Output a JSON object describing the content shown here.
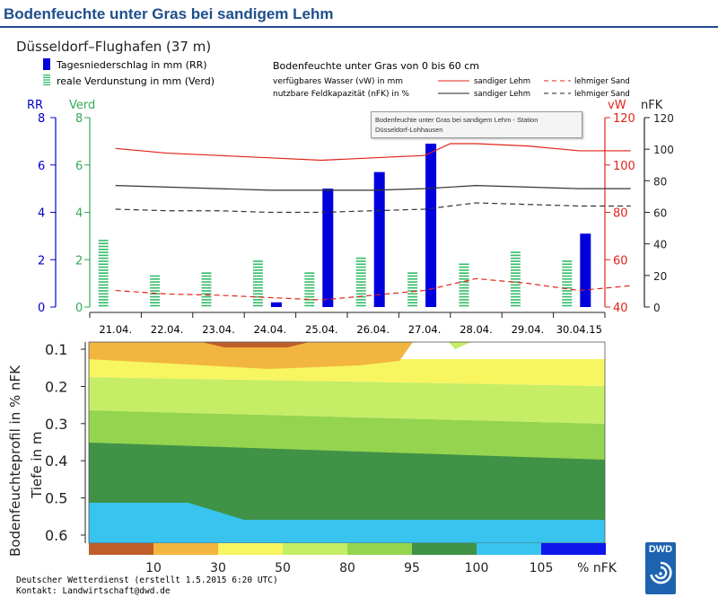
{
  "page": {
    "title": "Bodenfeuchte unter Gras bei sandigem Lehm"
  },
  "tooltip": {
    "line1": "Bodenfeuchte unter Gras bei sandigem Lehm - Station",
    "line2": "Düsseldorf-Lohhausen"
  },
  "colors": {
    "precip": "#0000dd",
    "evap": "#33bb66",
    "red": "#e2231a",
    "black": "#333333",
    "axis_rr": "#0000cc",
    "axis_verd": "#33aa55"
  },
  "chart_data": [
    {
      "type": "bar+line",
      "station": "Düsseldorf–Flughafen (37 m)",
      "legend": {
        "precip": "Tagesniederschlag in mm (RR)",
        "evap": "reale Verdunstung in mm (Verd)",
        "soil_title": "Bodenfeuchte unter Gras von 0 bis 60 cm",
        "vw_label": "verfügbares Wasser (vW) in mm",
        "nfk_label": "nutzbare Feldkapazität (nFK) in %",
        "sandy_loam": "sandiger Lehm",
        "loamy_sand": "lehmiger Sand"
      },
      "axis_labels": {
        "rr": "RR",
        "verd": "Verd",
        "vw": "vW",
        "nfk": "nFK"
      },
      "categories": [
        "21.04.",
        "22.04.",
        "23.04.",
        "24.04.",
        "25.04.",
        "26.04.",
        "27.04.",
        "28.04.",
        "29.04.",
        "30.04.15"
      ],
      "rr_ticks": [
        "0",
        "2",
        "4",
        "6",
        "8"
      ],
      "verd_ticks": [
        "0",
        "2",
        "4",
        "6",
        "8"
      ],
      "vw_ticks": [
        "40",
        "60",
        "80",
        "100",
        "120"
      ],
      "nfk_ticks": [
        "0",
        "20",
        "40",
        "60",
        "80",
        "100",
        "120"
      ],
      "rr_range": [
        0,
        8
      ],
      "vw_range": [
        40,
        120
      ],
      "nfk_range": [
        0,
        120
      ],
      "precip_mm": [
        0,
        0,
        0,
        0.2,
        5.0,
        5.7,
        6.9,
        0,
        0,
        3.1
      ],
      "evap_mm": [
        2.9,
        1.3,
        1.5,
        2.0,
        1.5,
        2.1,
        1.5,
        1.9,
        2.4,
        2.0
      ],
      "vw_sandy_loam_x": [
        0,
        1,
        2,
        3,
        4,
        5,
        6,
        6.5,
        7,
        8,
        9,
        10
      ],
      "vw_sandy_loam": [
        107,
        105,
        104,
        103,
        102,
        103,
        104,
        109,
        109,
        108,
        106,
        106
      ],
      "vw_loamy_sand_x": [
        0,
        1,
        2,
        3,
        4,
        5,
        6,
        7,
        8,
        9,
        10
      ],
      "vw_loamy_sand": [
        47,
        45.5,
        45,
        44,
        43,
        45,
        47,
        52,
        50,
        47,
        49
      ],
      "nfk_sandy_loam": [
        77,
        76,
        75,
        74,
        74,
        74,
        75,
        77,
        76,
        75,
        75
      ],
      "nfk_loamy_sand": [
        62,
        61,
        61,
        60,
        60,
        61,
        62,
        66,
        65,
        64,
        64
      ]
    },
    {
      "type": "heatmap",
      "ylabel": "Bodenfeuchteprofil in % nFK",
      "ylabel2": "Tiefe in m",
      "depth_ticks": [
        "0.1",
        "0.2",
        "0.3",
        "0.4",
        "0.5",
        "0.6"
      ],
      "depth_range": [
        0.1,
        0.62
      ],
      "colorbar_colors": [
        "#c05e2a",
        "#f2b640",
        "#f7f560",
        "#c6ed66",
        "#95d44f",
        "#3f9246",
        "#38c4ee",
        "#0f16ea"
      ],
      "colorbar_ticks": [
        "10",
        "30",
        "50",
        "80",
        "95",
        "100",
        "105",
        "% nFK"
      ]
    }
  ],
  "footer": {
    "line1": "Deutscher Wetterdienst (erstellt 1.5.2015 6:20 UTC)",
    "line2": "Kontakt: Landwirtschaft@dwd.de"
  },
  "logo": {
    "text": "DWD"
  }
}
